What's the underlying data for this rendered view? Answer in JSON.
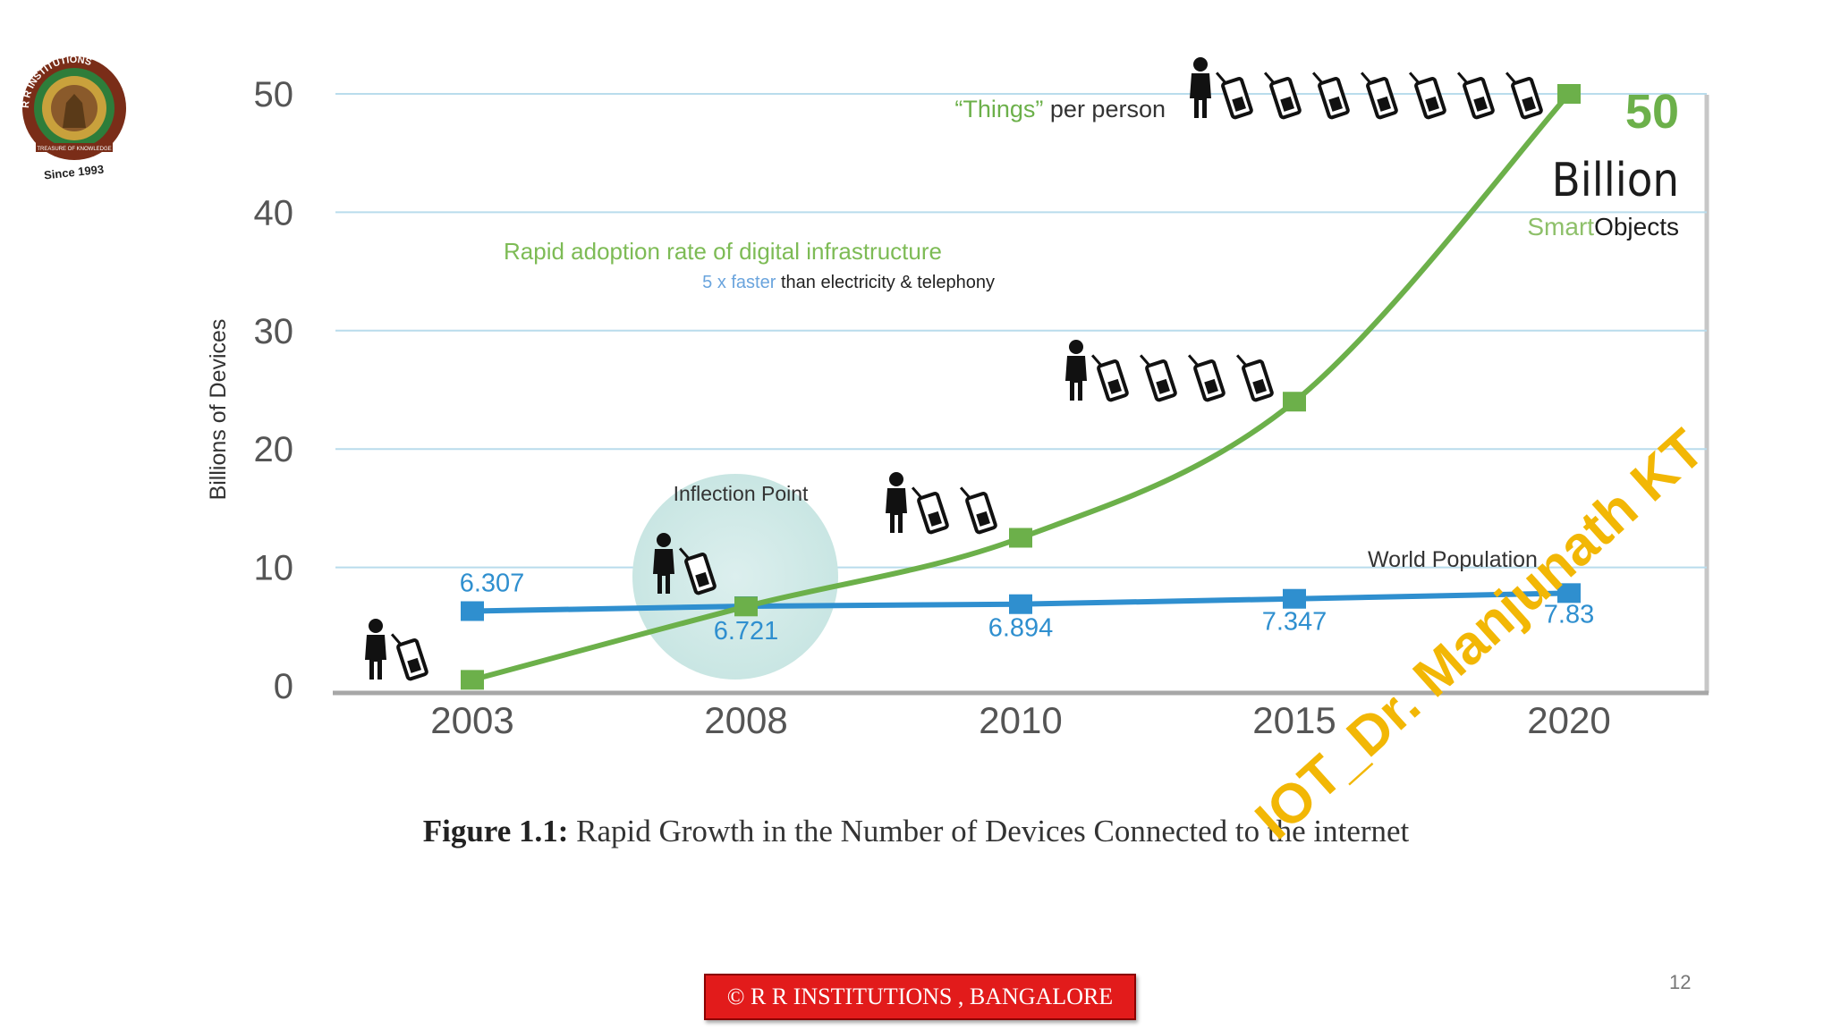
{
  "logo": {
    "name": "R R INSTITUTIONS",
    "motto": "TREASURE OF KNOWLEDGE",
    "since": "Since 1993"
  },
  "chart_data": {
    "type": "line",
    "ylabel": "Billions of Devices",
    "ylim": [
      0,
      50
    ],
    "yticks": [
      0,
      10,
      20,
      30,
      40,
      50
    ],
    "categories": [
      "2003",
      "2008",
      "2010",
      "2015",
      "2020"
    ],
    "series": [
      {
        "name": "“Things” per person",
        "color": "#6cb04a",
        "values": [
          0.5,
          6.7,
          12.5,
          24,
          50
        ]
      },
      {
        "name": "World Population",
        "color": "#2f8fcf",
        "values": [
          6.307,
          6.721,
          6.894,
          7.347,
          7.83
        ]
      }
    ],
    "population_labels": [
      "6.307",
      "6.721",
      "6.894",
      "7.347",
      "7.83"
    ],
    "grid": true,
    "annotations": {
      "things_per_person": "“Things” per person",
      "things_word": "“Things”",
      "per_person": " per person",
      "big_number": "50",
      "billion": "Billion",
      "smart": "Smart",
      "objects": "Objects",
      "adoption_title": "Rapid adoption rate of digital infrastructure",
      "faster_blue": "5 x faster",
      "faster_rest": " than electricity & telephony",
      "inflection": "Inflection Point",
      "world_population": "World Population"
    },
    "devices_per_person": [
      1,
      1,
      2,
      4,
      7
    ]
  },
  "caption": {
    "bold": "Figure 1.1:",
    "text": " Rapid Growth in the Number of Devices Connected to the internet"
  },
  "footer": "© R R INSTITUTIONS , BANGALORE",
  "page_number": "12",
  "watermark": "IOT_Dr. Manjunath KT",
  "colors": {
    "green": "#6cb04a",
    "blue": "#2f8fcf",
    "grid": "#b9dcec",
    "footer": "#e21b1b",
    "watermark": "#f2b705"
  }
}
